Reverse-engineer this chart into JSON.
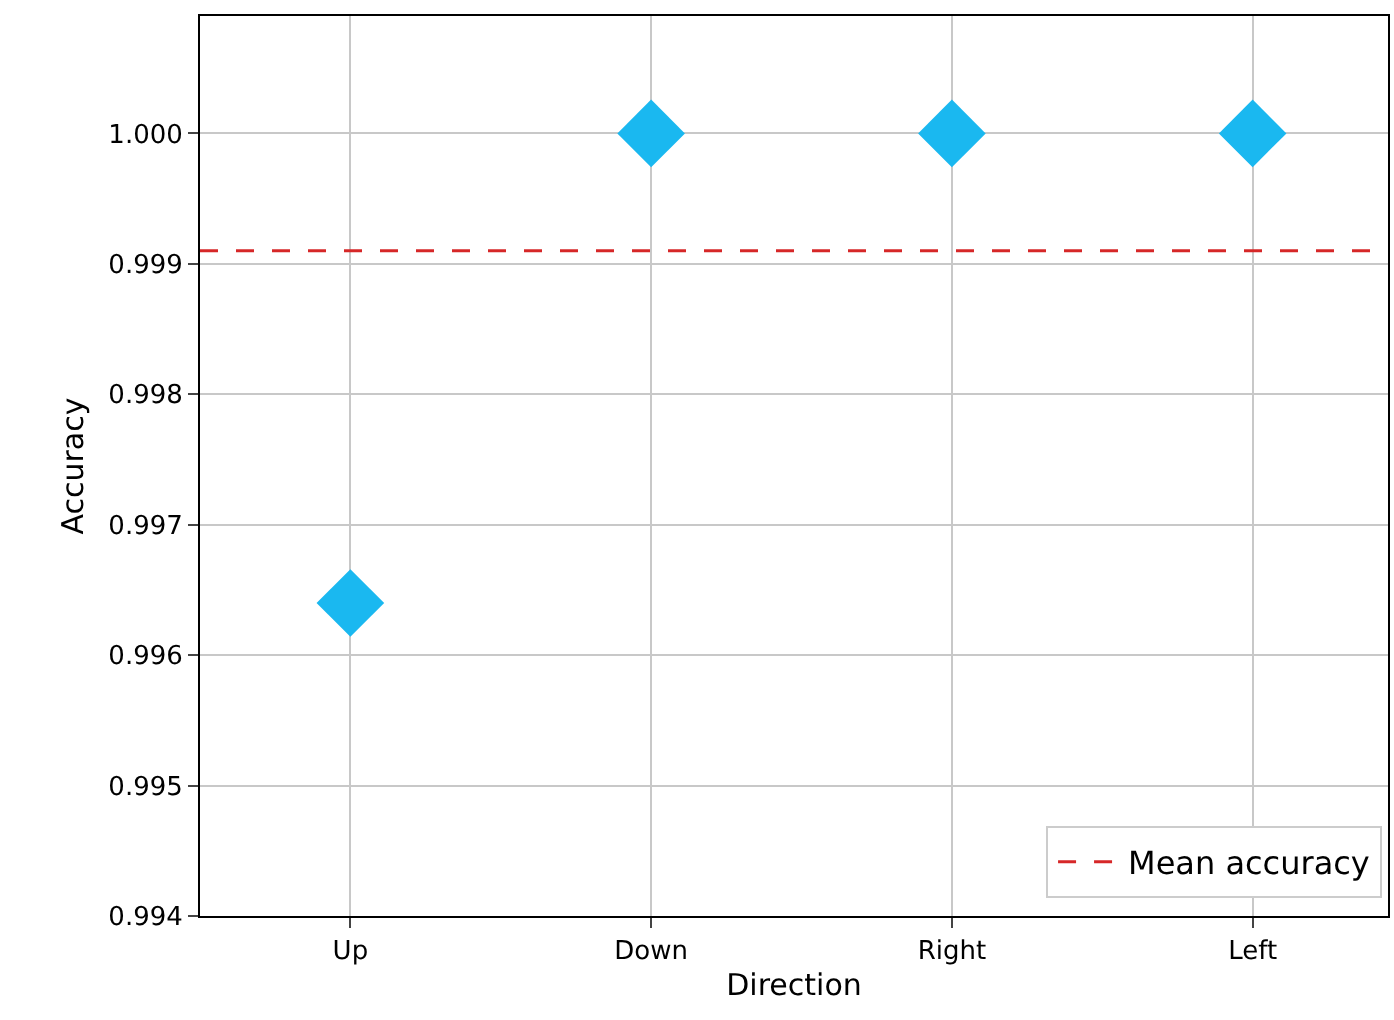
{
  "chart_data": {
    "type": "scatter",
    "xlabel": "Direction",
    "ylabel": "Accuracy",
    "categories": [
      "Up",
      "Down",
      "Right",
      "Left"
    ],
    "series": [
      {
        "color": "#1ab8f0",
        "values": [
          0.9964,
          1.0,
          1.0,
          1.0
        ]
      }
    ],
    "ylim": [
      0.994,
      1.0009
    ],
    "yticks": [
      {
        "value": 0.994,
        "label": "0.994"
      },
      {
        "value": 0.995,
        "label": "0.995"
      },
      {
        "value": 0.996,
        "label": "0.996"
      },
      {
        "value": 0.997,
        "label": "0.997"
      },
      {
        "value": 0.998,
        "label": "0.998"
      },
      {
        "value": 0.999,
        "label": "0.999"
      },
      {
        "value": 1.0,
        "label": "1.000"
      }
    ],
    "ref_lines": [
      {
        "axis": "y",
        "value": 0.9991,
        "label": "Mean accuracy",
        "color": "#d62728",
        "line_style": "dashed"
      }
    ],
    "grid": true,
    "legend": "bottom right",
    "marker": "diamond"
  }
}
